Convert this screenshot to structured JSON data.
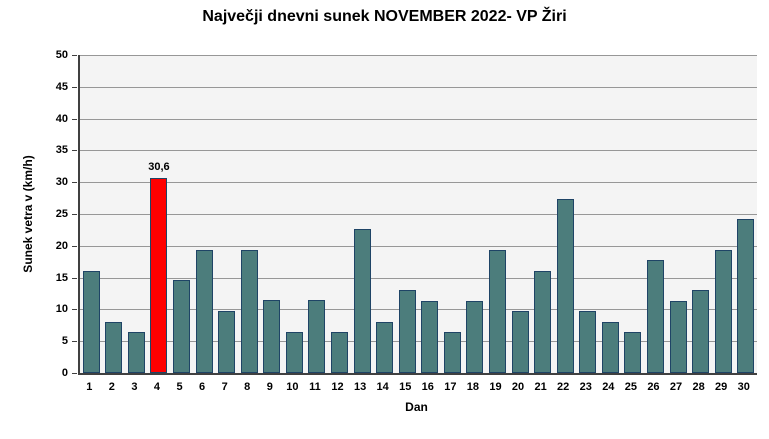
{
  "chart_data": {
    "type": "bar",
    "title": "Največji dnevni sunek NOVEMBER 2022- VP Žiri",
    "xlabel": "Dan",
    "ylabel": "Sunek vetra v (km/h)",
    "categories": [
      "1",
      "2",
      "3",
      "4",
      "5",
      "6",
      "7",
      "8",
      "9",
      "10",
      "11",
      "12",
      "13",
      "14",
      "15",
      "16",
      "17",
      "18",
      "19",
      "20",
      "21",
      "22",
      "23",
      "24",
      "25",
      "26",
      "27",
      "28",
      "29",
      "30"
    ],
    "values": [
      16.1,
      8.0,
      6.4,
      30.6,
      14.6,
      19.3,
      9.8,
      19.3,
      11.5,
      6.4,
      11.5,
      6.4,
      22.6,
      8.0,
      13.0,
      11.4,
      6.4,
      11.4,
      19.3,
      9.7,
      16.1,
      27.4,
      9.7,
      8.0,
      6.4,
      17.8,
      11.4,
      13.0,
      19.4,
      24.2
    ],
    "ylim": [
      0,
      50
    ],
    "ytick_step": 5,
    "grid": true,
    "legend": false,
    "data_labels": [
      {
        "index": 3,
        "text": "30,6"
      }
    ],
    "highlight": {
      "index": 3,
      "category": "4"
    },
    "colors": {
      "bar_fill": "#4C7D7C",
      "bar_border": "#1F4466",
      "highlight_fill": "#FF0000",
      "plot_bg": "#F4F4F4",
      "gridline": "#979797",
      "axis": "#404040",
      "text": "#000000"
    }
  }
}
